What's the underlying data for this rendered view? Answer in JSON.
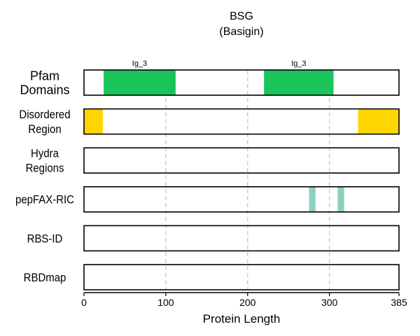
{
  "chart_data": {
    "type": "bar",
    "title": "BSG",
    "subtitle": "(Basigin)",
    "xlabel": "Protein Length",
    "xlim": [
      0,
      385
    ],
    "xticks": [
      0,
      100,
      200,
      300,
      385
    ],
    "grid": true,
    "tracks": [
      {
        "label_lines": [
          "Pfam",
          "Domains"
        ],
        "color": "#1bc45a",
        "segments": [
          {
            "start": 24,
            "end": 112,
            "label": "Ig_3"
          },
          {
            "start": 220,
            "end": 305,
            "label": "Ig_3"
          }
        ]
      },
      {
        "label_lines": [
          "Disordered",
          "Region"
        ],
        "color": "#ffd500",
        "segments": [
          {
            "start": 0,
            "end": 23
          },
          {
            "start": 335,
            "end": 385
          }
        ]
      },
      {
        "label_lines": [
          "Hydra",
          "Regions"
        ],
        "color": "#888888",
        "segments": []
      },
      {
        "label_lines": [
          "pepFAX-RIC"
        ],
        "color": "#8ecfc0",
        "segments": [
          {
            "start": 275,
            "end": 283
          },
          {
            "start": 310,
            "end": 318
          }
        ]
      },
      {
        "label_lines": [
          "RBS-ID"
        ],
        "color": "#888888",
        "segments": []
      },
      {
        "label_lines": [
          "RBDmap"
        ],
        "color": "#888888",
        "segments": []
      }
    ]
  }
}
